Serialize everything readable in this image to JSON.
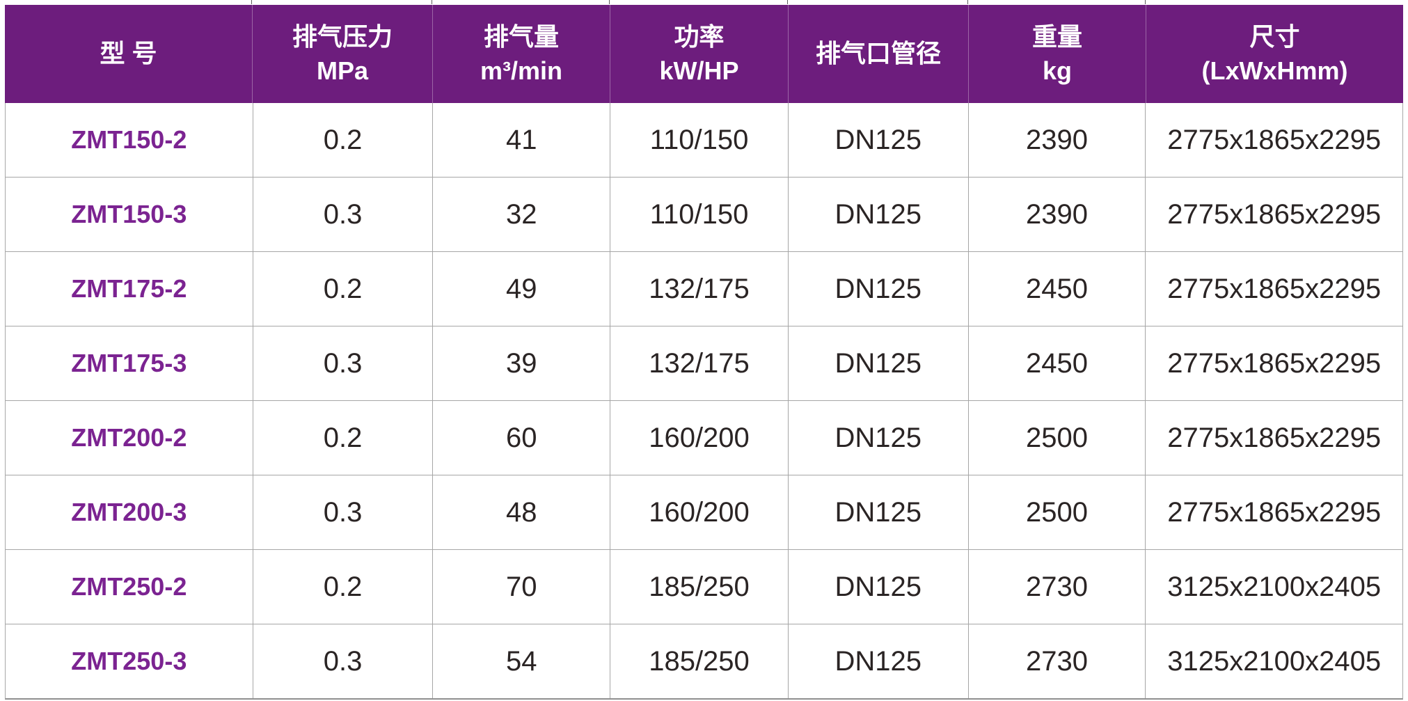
{
  "colors": {
    "header_bg": "#6d1d7d",
    "header_text": "#ffffff",
    "header_divider": "rgba(255,255,255,0.32)",
    "model_text": "#7b2391",
    "body_text": "#2a2424",
    "grid_line": "#a6a6a6"
  },
  "chart_data": {
    "type": "table",
    "title": "",
    "columns": [
      {
        "line1": "型  号",
        "line2": ""
      },
      {
        "line1": "排气压力",
        "line2": "MPa"
      },
      {
        "line1": "排气量",
        "line2": "m³/min"
      },
      {
        "line1": "功率",
        "line2": "kW/HP"
      },
      {
        "line1": "排气口管径",
        "line2": ""
      },
      {
        "line1": "重量",
        "line2": "kg"
      },
      {
        "line1": "尺寸",
        "line2": "(LxWxHmm)"
      }
    ],
    "rows": [
      [
        "ZMT150-2",
        "0.2",
        "41",
        "110/150",
        "DN125",
        "2390",
        "2775x1865x2295"
      ],
      [
        "ZMT150-3",
        "0.3",
        "32",
        "110/150",
        "DN125",
        "2390",
        "2775x1865x2295"
      ],
      [
        "ZMT175-2",
        "0.2",
        "49",
        "132/175",
        "DN125",
        "2450",
        "2775x1865x2295"
      ],
      [
        "ZMT175-3",
        "0.3",
        "39",
        "132/175",
        "DN125",
        "2450",
        "2775x1865x2295"
      ],
      [
        "ZMT200-2",
        "0.2",
        "60",
        "160/200",
        "DN125",
        "2500",
        "2775x1865x2295"
      ],
      [
        "ZMT200-3",
        "0.3",
        "48",
        "160/200",
        "DN125",
        "2500",
        "2775x1865x2295"
      ],
      [
        "ZMT250-2",
        "0.2",
        "70",
        "185/250",
        "DN125",
        "2730",
        "3125x2100x2405"
      ],
      [
        "ZMT250-3",
        "0.3",
        "54",
        "185/250",
        "DN125",
        "2730",
        "3125x2100x2405"
      ]
    ]
  }
}
